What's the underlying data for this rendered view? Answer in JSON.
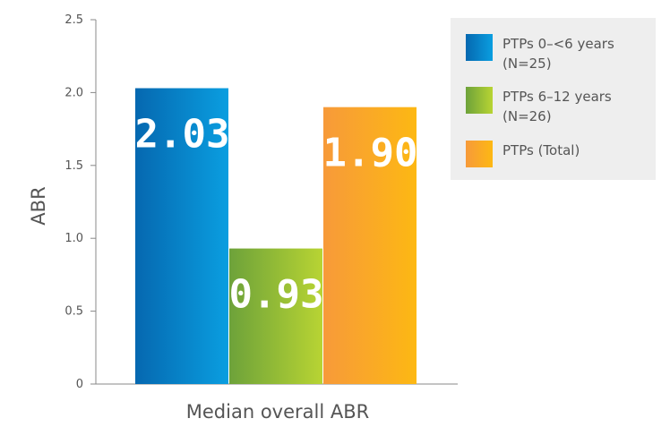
{
  "chart_data": {
    "type": "bar",
    "categories": [
      "Median overall ABR"
    ],
    "series": [
      {
        "name": "PTPs 0–<6 years (N=25)",
        "name_lines": [
          "PTPs 0–<6 years",
          "(N=25)"
        ],
        "values": [
          2.03
        ],
        "value_label": "2.03",
        "color_from": "#0568b0",
        "color_to": "#0a9ee0"
      },
      {
        "name": "PTPs 6–12 years (N=26)",
        "name_lines": [
          "PTPs 6–12 years",
          "(N=26)"
        ],
        "values": [
          0.93
        ],
        "value_label": "0.93",
        "color_from": "#6da23a",
        "color_to": "#b8d433"
      },
      {
        "name": "PTPs (Total)",
        "name_lines": [
          "PTPs (Total)"
        ],
        "values": [
          1.9
        ],
        "value_label": "1.90",
        "color_from": "#f79a3a",
        "color_to": "#fdb813"
      }
    ],
    "title": "",
    "xlabel": "Median overall ABR",
    "ylabel": "ABR",
    "ylim": [
      0,
      2.5
    ],
    "yticks": [
      0,
      0.5,
      1.0,
      1.5,
      2.0,
      2.5
    ],
    "ytick_labels": [
      "0",
      "0.5",
      "1.0",
      "1.5",
      "2.0",
      "2.5"
    ],
    "grid": false,
    "legend_position": "top-right",
    "legend_background": "#eeeeee",
    "axis_color": "#888888",
    "text_color": "#555555"
  }
}
